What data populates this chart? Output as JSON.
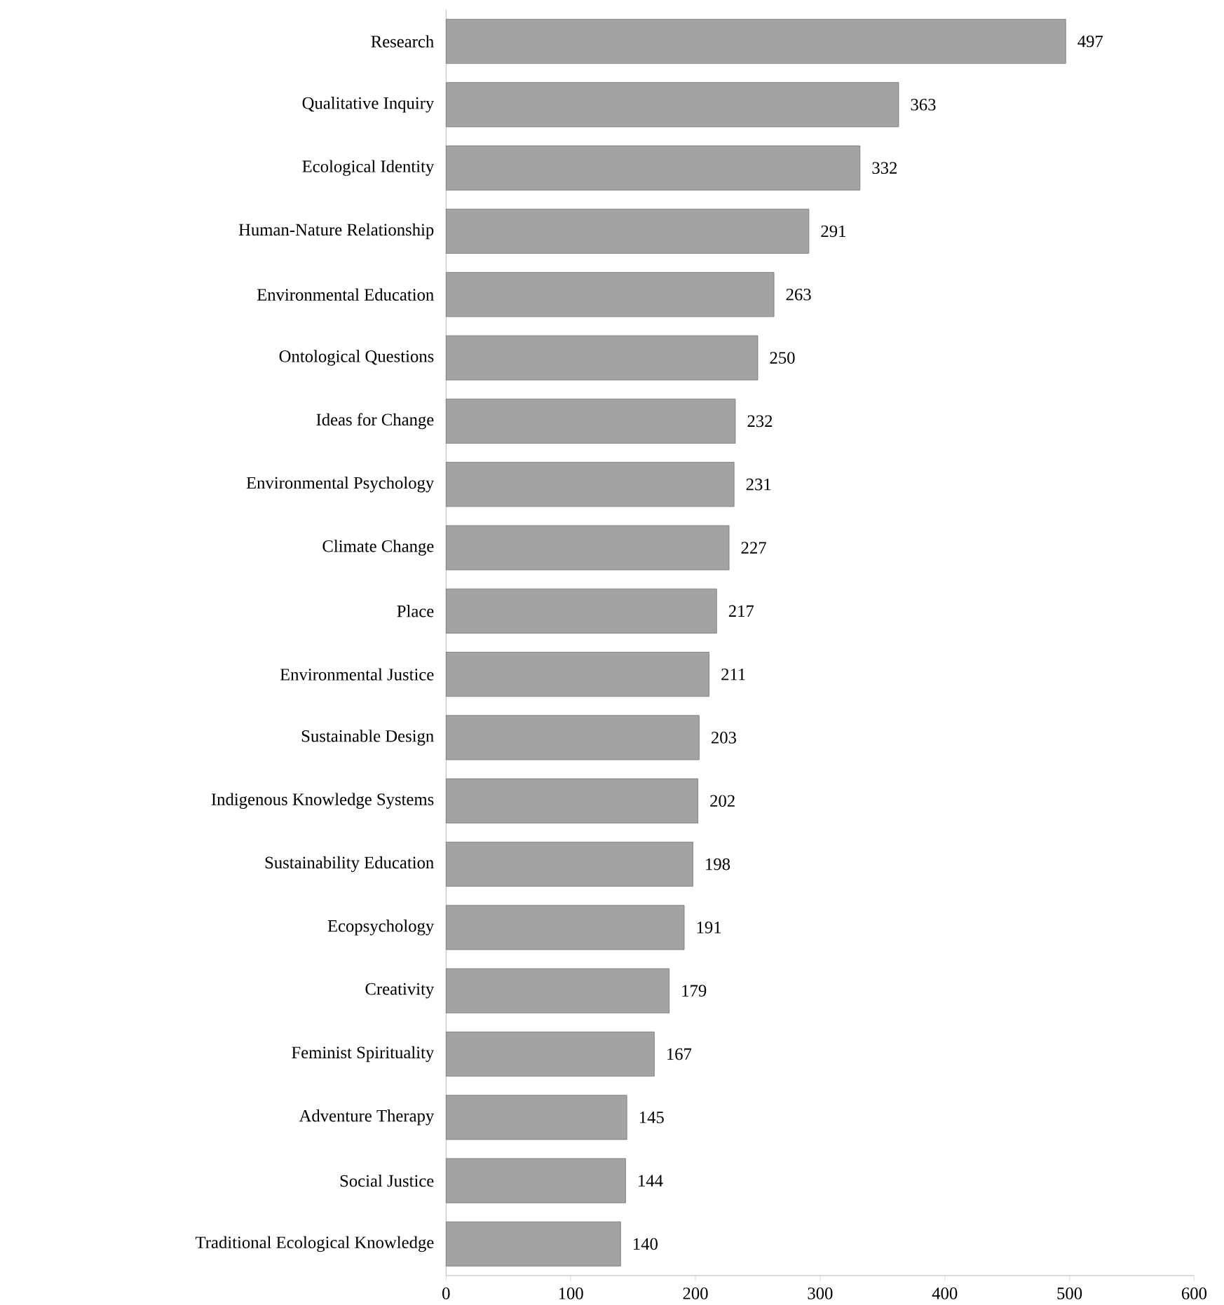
{
  "chart_data": {
    "type": "bar",
    "orientation": "horizontal",
    "categories": [
      "Research",
      "Qualitative Inquiry",
      "Ecological Identity",
      "Human-Nature Relationship",
      "Environmental Education",
      "Ontological Questions",
      "Ideas for Change",
      "Environmental Psychology",
      "Climate Change",
      "Place",
      "Environmental Justice",
      "Sustainable Design",
      "Indigenous Knowledge Systems",
      "Sustainability Education",
      "Ecopsychology",
      "Creativity",
      "Feminist Spirituality",
      "Adventure Therapy",
      "Social Justice",
      "Traditional Ecological Knowledge"
    ],
    "values": [
      497,
      363,
      332,
      291,
      263,
      250,
      232,
      231,
      227,
      217,
      211,
      203,
      202,
      198,
      191,
      179,
      167,
      145,
      144,
      140
    ],
    "color": "#a3a3a3",
    "xlim": [
      0,
      600
    ],
    "xticks": [
      0,
      100,
      200,
      300,
      400,
      500,
      600
    ],
    "data_labels": true
  }
}
